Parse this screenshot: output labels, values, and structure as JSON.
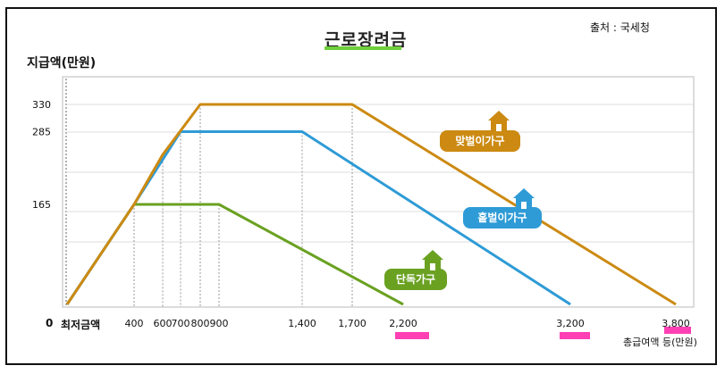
{
  "chart_data": {
    "type": "line",
    "title": "근로장려금",
    "source": "출처 : 국세청",
    "ylabel": "지급액(만원)",
    "x_min_label": "최저금액",
    "x_unit_label": "총급여액 등(만원)",
    "zero_label": "0",
    "ylim": [
      0,
      360
    ],
    "xlim": [
      0,
      3800
    ],
    "grid": true,
    "y_ticks": [
      165,
      285,
      330
    ],
    "x_ticks": [
      400,
      600,
      700,
      800,
      900,
      1400,
      1700,
      2200,
      3200,
      3800
    ],
    "x_tick_labels": [
      "400",
      "600",
      "700",
      "800",
      "900",
      "1,400",
      "1,700",
      "2,200",
      "3,200",
      "3,800"
    ],
    "series": [
      {
        "name": "단독가구",
        "color": "#6aa121",
        "x": [
          0,
          400,
          900,
          2200
        ],
        "y": [
          0,
          165,
          165,
          0
        ]
      },
      {
        "name": "홑벌이가구",
        "color": "#2e9bd6",
        "x": [
          0,
          400,
          700,
          1400,
          3200
        ],
        "y": [
          0,
          165,
          285,
          285,
          0
        ]
      },
      {
        "name": "맞벌이가구",
        "color": "#cc8a12",
        "x": [
          0,
          400,
          600,
          800,
          1700,
          3800
        ],
        "y": [
          0,
          165,
          247,
          330,
          330,
          0
        ]
      }
    ]
  }
}
